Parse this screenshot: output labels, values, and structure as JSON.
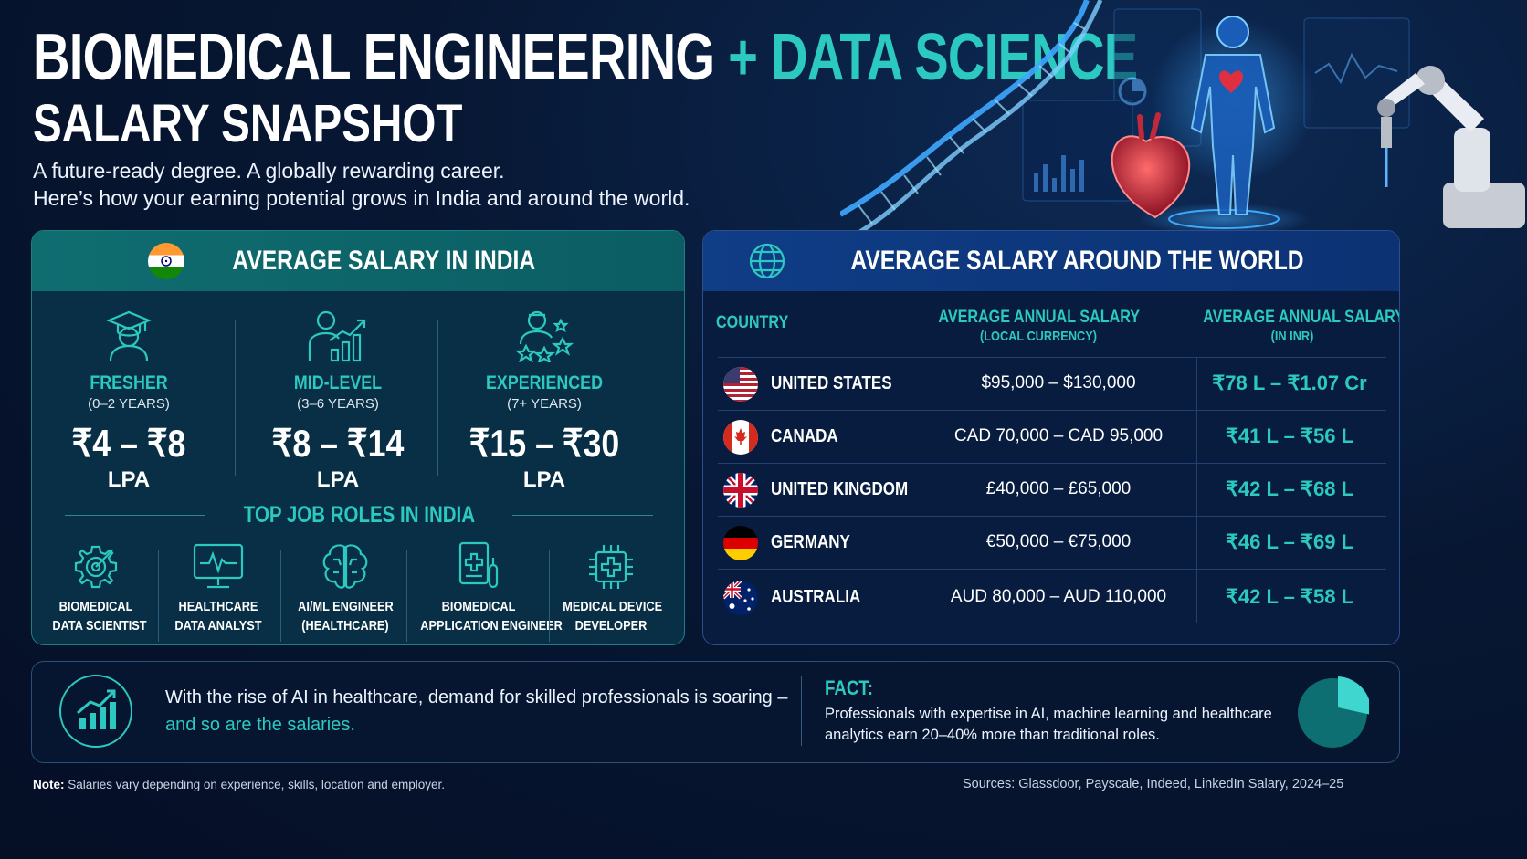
{
  "title": {
    "line1_part1": "BIOMEDICAL ENGINEERING",
    "line1_plus": "+",
    "line1_part2": "DATA SCIENCE",
    "line2": "SALARY SNAPSHOT"
  },
  "subtitle": {
    "line1": "A future-ready degree. A globally rewarding career.",
    "line2": "Here’s how your earning potential grows in India and around the world."
  },
  "india": {
    "title": "AVERAGE SALARY IN INDIA",
    "levels": [
      {
        "name": "FRESHER",
        "years": "(0–2 YEARS)",
        "range": "₹4 – ₹8",
        "unit": "LPA"
      },
      {
        "name": "MID-LEVEL",
        "years": "(3–6 YEARS)",
        "range": "₹8 – ₹14",
        "unit": "LPA"
      },
      {
        "name": "EXPERIENCED",
        "years": "(7+ YEARS)",
        "range": "₹15 – ₹30",
        "unit": "LPA"
      }
    ],
    "roles_title": "TOP JOB ROLES IN INDIA",
    "roles": [
      {
        "line1": "BIOMEDICAL",
        "line2": "DATA SCIENTIST"
      },
      {
        "line1": "HEALTHCARE",
        "line2": "DATA ANALYST"
      },
      {
        "line1": "AI/ML ENGINEER",
        "line2": "(HEALTHCARE)"
      },
      {
        "line1": "BIOMEDICAL",
        "line2": "APPLICATION ENGINEER"
      },
      {
        "line1": "MEDICAL DEVICE",
        "line2": "DEVELOPER"
      }
    ]
  },
  "world": {
    "title": "AVERAGE SALARY AROUND THE WORLD",
    "headers": {
      "country": "COUNTRY",
      "local_main": "AVERAGE ANNUAL SALARY",
      "local_sub": "(LOCAL CURRENCY)",
      "inr_main": "AVERAGE ANNUAL SALARY",
      "inr_sub": "(IN INR)"
    },
    "rows": [
      {
        "country": "UNITED STATES",
        "local": "$95,000 – $130,000",
        "inr": "₹78 L – ₹1.07 Cr"
      },
      {
        "country": "CANADA",
        "local": "CAD 70,000 – CAD 95,000",
        "inr": "₹41 L – ₹56 L"
      },
      {
        "country": "UNITED KINGDOM",
        "local": "£40,000 – £65,000",
        "inr": "₹42 L – ₹68 L"
      },
      {
        "country": "GERMANY",
        "local": "€50,000 – €75,000",
        "inr": "₹46 L – ₹69 L"
      },
      {
        "country": "AUSTRALIA",
        "local": "AUD 80,000 – AUD 110,000",
        "inr": "₹42 L – ₹58 L"
      }
    ]
  },
  "bottom": {
    "demand_line1": "With the rise of AI in healthcare, demand for skilled professionals is soaring –",
    "demand_line2": "and so are the salaries.",
    "fact_label": "FACT:",
    "fact_line1": "Professionals with expertise in AI, machine learning and healthcare",
    "fact_line2": "analytics earn 20–40% more than traditional roles."
  },
  "footer": {
    "note_label": "Note:",
    "note_text": "Salaries vary depending on experience, skills, location and employer.",
    "sources": "Sources: Glassdoor, Payscale, Indeed, LinkedIn Salary, 2024–25"
  },
  "colors": {
    "accent": "#2cc9c1",
    "background": "#071733",
    "india_header": "#0f6d70",
    "world_header": "#0f3d86"
  }
}
